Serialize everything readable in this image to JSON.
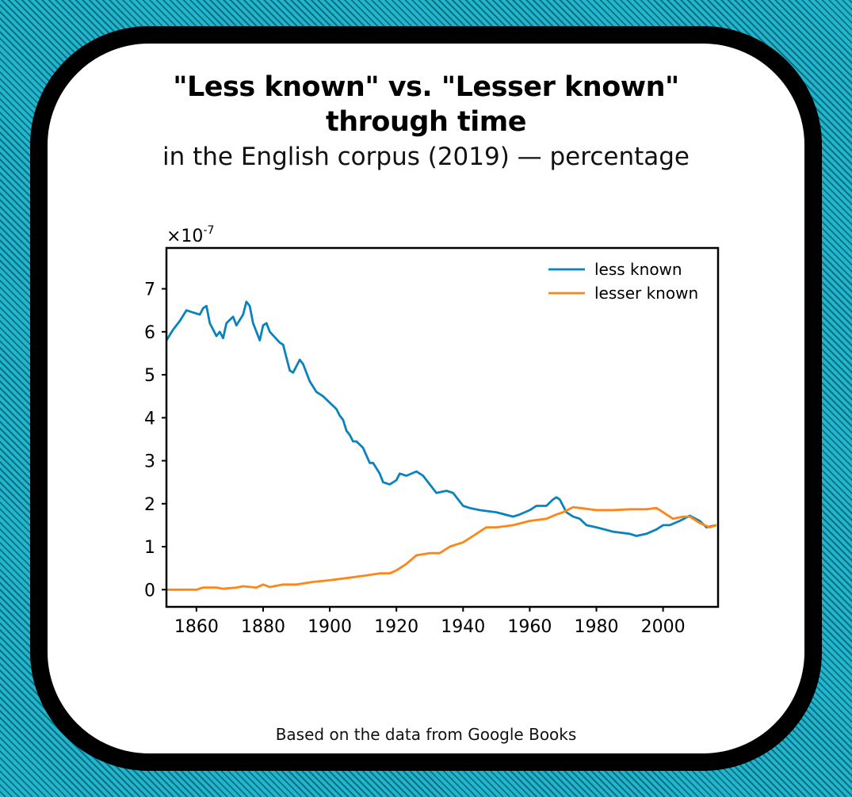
{
  "title_line1": "\"Less known\" vs. \"Lesser known\"",
  "title_line2": "through time",
  "subtitle": "in the English corpus (2019) — percentage",
  "footer": "Based on the data from Google Books",
  "colors": {
    "less_known": "#0a83bd",
    "lesser_known": "#ff8517"
  },
  "chart_data": {
    "type": "line",
    "title": "\"Less known\" vs. \"Lesser known\" through time",
    "subtitle": "in the English corpus (2019) — percentage",
    "xlabel": "",
    "ylabel": "",
    "y_multiplier": "×10-7",
    "xlim": [
      1851,
      2016.5
    ],
    "ylim": [
      -0.4,
      7.95
    ],
    "xticks": [
      1860,
      1880,
      1900,
      1920,
      1940,
      1960,
      1980,
      2000
    ],
    "yticks": [
      0,
      1,
      2,
      3,
      4,
      5,
      6,
      7
    ],
    "legend_position": "top-right",
    "grid": false,
    "series": [
      {
        "name": "less known",
        "color": "#0a83bd",
        "x": [
          1851,
          1853,
          1855,
          1857,
          1859,
          1861,
          1862,
          1863,
          1864,
          1866,
          1867,
          1868,
          1869,
          1871,
          1872,
          1874,
          1875,
          1876,
          1877,
          1879,
          1880,
          1881,
          1882,
          1885,
          1886,
          1888,
          1889,
          1891,
          1892,
          1894,
          1896,
          1898,
          1900,
          1902,
          1903,
          1904,
          1905,
          1906,
          1907,
          1908,
          1910,
          1912,
          1913,
          1915,
          1916,
          1918,
          1920,
          1921,
          1923,
          1926,
          1928,
          1930,
          1932,
          1935,
          1937,
          1940,
          1942,
          1945,
          1950,
          1955,
          1957,
          1960,
          1962,
          1965,
          1967,
          1968,
          1969,
          1971,
          1973,
          1975,
          1977,
          1980,
          1985,
          1990,
          1992,
          1995,
          1998,
          2000,
          2002,
          2005,
          2008,
          2011,
          2013,
          2016
        ],
        "y": [
          5.8,
          6.05,
          6.25,
          6.5,
          6.45,
          6.4,
          6.55,
          6.6,
          6.2,
          5.9,
          6.0,
          5.85,
          6.2,
          6.35,
          6.15,
          6.4,
          6.7,
          6.6,
          6.2,
          5.8,
          6.15,
          6.2,
          6.0,
          5.75,
          5.7,
          5.1,
          5.05,
          5.35,
          5.25,
          4.85,
          4.6,
          4.5,
          4.35,
          4.2,
          4.05,
          3.95,
          3.7,
          3.6,
          3.45,
          3.45,
          3.3,
          2.95,
          2.95,
          2.7,
          2.5,
          2.45,
          2.55,
          2.7,
          2.65,
          2.75,
          2.65,
          2.45,
          2.25,
          2.3,
          2.25,
          1.95,
          1.9,
          1.85,
          1.8,
          1.7,
          1.75,
          1.85,
          1.95,
          1.95,
          2.1,
          2.15,
          2.1,
          1.8,
          1.7,
          1.65,
          1.5,
          1.45,
          1.35,
          1.3,
          1.25,
          1.3,
          1.4,
          1.5,
          1.5,
          1.6,
          1.72,
          1.6,
          1.45,
          1.5
        ]
      },
      {
        "name": "lesser known",
        "color": "#ff8517",
        "x": [
          1851,
          1860,
          1862,
          1866,
          1868,
          1872,
          1874,
          1878,
          1880,
          1882,
          1886,
          1890,
          1895,
          1900,
          1905,
          1910,
          1915,
          1918,
          1920,
          1923,
          1926,
          1930,
          1933,
          1936,
          1940,
          1943,
          1947,
          1950,
          1955,
          1960,
          1965,
          1968,
          1970,
          1973,
          1975,
          1980,
          1985,
          1990,
          1995,
          1998,
          2000,
          2003,
          2006,
          2008,
          2011,
          2014,
          2016
        ],
        "y": [
          0,
          0,
          0.05,
          0.05,
          0.02,
          0.05,
          0.08,
          0.05,
          0.12,
          0.06,
          0.12,
          0.12,
          0.18,
          0.22,
          0.27,
          0.32,
          0.38,
          0.38,
          0.45,
          0.6,
          0.8,
          0.85,
          0.85,
          1.0,
          1.1,
          1.25,
          1.45,
          1.45,
          1.5,
          1.6,
          1.65,
          1.75,
          1.8,
          1.92,
          1.9,
          1.85,
          1.85,
          1.87,
          1.87,
          1.9,
          1.8,
          1.65,
          1.7,
          1.7,
          1.55,
          1.45,
          1.5
        ]
      }
    ]
  }
}
